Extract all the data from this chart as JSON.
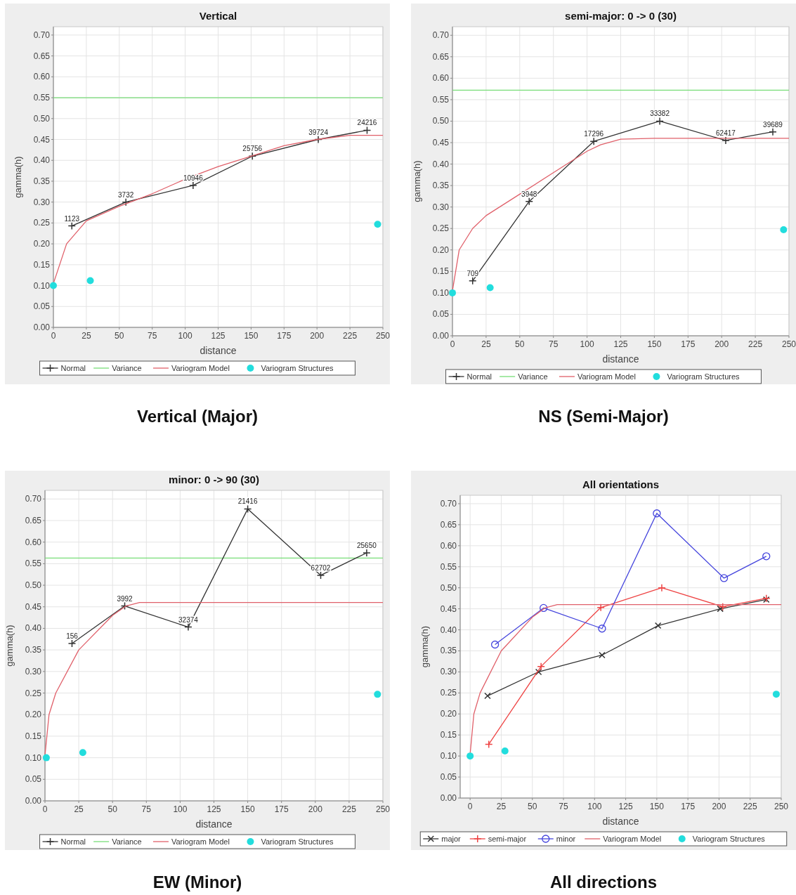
{
  "chart_data": [
    {
      "type": "line",
      "title": "Vertical",
      "xlabel": "distance",
      "ylabel": "gamma(h)",
      "xlim": [
        0,
        250
      ],
      "ylim": [
        0,
        0.72
      ],
      "xticks": [
        0,
        25,
        50,
        75,
        100,
        125,
        150,
        175,
        200,
        225,
        250
      ],
      "yticks": [
        {
          "value": 0,
          "label": "0.00"
        },
        0.05,
        {
          "value": 0.1,
          "label": "0.10"
        },
        0.15,
        {
          "value": 0.2,
          "label": "0.20"
        },
        0.25,
        {
          "value": 0.3,
          "label": "0.30"
        },
        0.35,
        {
          "value": 0.4,
          "label": "0.40"
        },
        0.45,
        {
          "value": 0.5,
          "label": "0.50"
        },
        0.55,
        {
          "value": 0.6,
          "label": "0.60"
        },
        0.65,
        {
          "value": 0.7,
          "label": "0.70"
        }
      ],
      "grid": true,
      "legend": "bottom",
      "series": [
        {
          "name": "Normal",
          "type": "line",
          "marker": "plus",
          "color": "#333333",
          "x": [
            14,
            55,
            106,
            151,
            201,
            238
          ],
          "values": [
            0.243,
            0.3,
            0.34,
            0.41,
            0.45,
            0.472
          ]
        },
        {
          "name": "Variogram Model",
          "type": "line",
          "marker": "none",
          "color": "#e0606a",
          "x": [
            0,
            10,
            25,
            50,
            75,
            100,
            125,
            150,
            175,
            200,
            225,
            250
          ],
          "values": [
            0.105,
            0.2,
            0.255,
            0.29,
            0.32,
            0.355,
            0.385,
            0.41,
            0.435,
            0.45,
            0.46,
            0.46
          ]
        },
        {
          "name": "Variogram Structures",
          "type": "scatter",
          "marker": "circle",
          "color": "#22dddd",
          "x": [
            0,
            28,
            246
          ],
          "values": [
            0.1,
            0.112,
            0.247
          ]
        }
      ],
      "ref_lines": [
        {
          "axis": "y",
          "value": 0.55,
          "label": "Variance",
          "color": "#77dd77"
        }
      ],
      "annotations": [
        {
          "text": "1123",
          "x": 14,
          "y": 0.243
        },
        {
          "text": "3732",
          "x": 55,
          "y": 0.3
        },
        {
          "text": "10946",
          "x": 106,
          "y": 0.34
        },
        {
          "text": "25756",
          "x": 151,
          "y": 0.41
        },
        {
          "text": "39724",
          "x": 201,
          "y": 0.45
        },
        {
          "text": "24216",
          "x": 238,
          "y": 0.472
        },
        "Vertical (Major)"
      ]
    },
    {
      "type": "line",
      "title": "semi-major: 0 -> 0 (30)",
      "xlabel": "distance",
      "ylabel": "gamma(h)",
      "xlim": [
        0,
        250
      ],
      "ylim": [
        0,
        0.72
      ],
      "xticks": [
        0,
        25,
        50,
        75,
        100,
        125,
        150,
        175,
        200,
        225,
        250
      ],
      "yticks": [
        {
          "value": 0,
          "label": "0.00"
        },
        0.05,
        {
          "value": 0.1,
          "label": "0.10"
        },
        0.15,
        {
          "value": 0.2,
          "label": "0.20"
        },
        0.25,
        {
          "value": 0.3,
          "label": "0.30"
        },
        0.35,
        {
          "value": 0.4,
          "label": "0.40"
        },
        0.45,
        {
          "value": 0.5,
          "label": "0.50"
        },
        0.55,
        {
          "value": 0.6,
          "label": "0.60"
        },
        0.65,
        {
          "value": 0.7,
          "label": "0.70"
        }
      ],
      "grid": true,
      "legend": "bottom",
      "series": [
        {
          "name": "Normal",
          "type": "line",
          "marker": "plus",
          "color": "#333333",
          "x": [
            15,
            57,
            105,
            154,
            203,
            238
          ],
          "values": [
            0.128,
            0.313,
            0.453,
            0.5,
            0.455,
            0.475
          ]
        },
        {
          "name": "Variogram Model",
          "type": "line",
          "marker": "none",
          "color": "#e0606a",
          "x": [
            0,
            5,
            15,
            25,
            50,
            75,
            100,
            110,
            125,
            150,
            250
          ],
          "values": [
            0.105,
            0.2,
            0.25,
            0.28,
            0.33,
            0.38,
            0.43,
            0.445,
            0.458,
            0.46,
            0.46
          ]
        },
        {
          "name": "Variogram Structures",
          "type": "scatter",
          "marker": "circle",
          "color": "#22dddd",
          "x": [
            0,
            28,
            246
          ],
          "values": [
            0.1,
            0.112,
            0.247
          ]
        }
      ],
      "ref_lines": [
        {
          "axis": "y",
          "value": 0.572,
          "label": "Variance",
          "color": "#77dd77"
        }
      ],
      "annotations": [
        {
          "text": "709",
          "x": 15,
          "y": 0.128
        },
        {
          "text": "3948",
          "x": 57,
          "y": 0.313
        },
        {
          "text": "17296",
          "x": 105,
          "y": 0.453
        },
        {
          "text": "33382",
          "x": 154,
          "y": 0.5
        },
        {
          "text": "62417",
          "x": 203,
          "y": 0.455
        },
        {
          "text": "39689",
          "x": 238,
          "y": 0.475
        },
        "NS (Semi-Major)"
      ]
    },
    {
      "type": "line",
      "title": "minor: 0 -> 90 (30)",
      "xlabel": "distance",
      "ylabel": "gamma(h)",
      "xlim": [
        0,
        250
      ],
      "ylim": [
        0,
        0.72
      ],
      "xticks": [
        0,
        25,
        50,
        75,
        100,
        125,
        150,
        175,
        200,
        225,
        250
      ],
      "yticks": [
        {
          "value": 0,
          "label": "0.00"
        },
        0.05,
        {
          "value": 0.1,
          "label": "0.10"
        },
        0.15,
        {
          "value": 0.2,
          "label": "0.20"
        },
        0.25,
        {
          "value": 0.3,
          "label": "0.30"
        },
        0.35,
        {
          "value": 0.4,
          "label": "0.40"
        },
        0.45,
        {
          "value": 0.5,
          "label": "0.50"
        },
        0.55,
        {
          "value": 0.6,
          "label": "0.60"
        },
        0.65,
        {
          "value": 0.7,
          "label": "0.70"
        }
      ],
      "grid": true,
      "legend": "bottom",
      "series": [
        {
          "name": "Normal",
          "type": "line",
          "marker": "plus",
          "color": "#333333",
          "x": [
            20,
            59,
            106,
            150,
            204,
            238
          ],
          "values": [
            0.365,
            0.452,
            0.403,
            0.677,
            0.523,
            0.575
          ]
        },
        {
          "name": "Variogram Model",
          "type": "line",
          "marker": "none",
          "color": "#e0606a",
          "x": [
            0,
            3,
            8,
            25,
            50,
            60,
            70,
            250
          ],
          "values": [
            0.105,
            0.2,
            0.25,
            0.35,
            0.43,
            0.452,
            0.46,
            0.46
          ]
        },
        {
          "name": "Variogram Structures",
          "type": "scatter",
          "marker": "circle",
          "color": "#22dddd",
          "x": [
            1,
            28,
            246
          ],
          "values": [
            0.1,
            0.112,
            0.247
          ]
        }
      ],
      "ref_lines": [
        {
          "axis": "y",
          "value": 0.563,
          "label": "Variance",
          "color": "#77dd77"
        }
      ],
      "annotations": [
        {
          "text": "156",
          "x": 20,
          "y": 0.365
        },
        {
          "text": "3992",
          "x": 59,
          "y": 0.452
        },
        {
          "text": "32374",
          "x": 106,
          "y": 0.403
        },
        {
          "text": "21416",
          "x": 150,
          "y": 0.677
        },
        {
          "text": "62702",
          "x": 204,
          "y": 0.523
        },
        {
          "text": "25650",
          "x": 238,
          "y": 0.575
        },
        "EW (Minor)"
      ]
    },
    {
      "type": "line",
      "title": "All orientations",
      "xlabel": "distance",
      "ylabel": "gamma(h)",
      "xlim": [
        -8,
        250
      ],
      "ylim": [
        0,
        0.72
      ],
      "xticks": [
        0,
        25,
        50,
        75,
        100,
        125,
        150,
        175,
        200,
        225,
        250
      ],
      "yticks": [
        {
          "value": 0,
          "label": "0.00"
        },
        0.05,
        {
          "value": 0.1,
          "label": "0.10"
        },
        0.15,
        {
          "value": 0.2,
          "label": "0.20"
        },
        0.25,
        {
          "value": 0.3,
          "label": "0.30"
        },
        0.35,
        {
          "value": 0.4,
          "label": "0.40"
        },
        0.45,
        {
          "value": 0.5,
          "label": "0.50"
        },
        0.55,
        {
          "value": 0.6,
          "label": "0.60"
        },
        0.65,
        {
          "value": 0.7,
          "label": "0.70"
        }
      ],
      "grid": true,
      "legend": "bottom",
      "series": [
        {
          "name": "major",
          "type": "line",
          "marker": "cross",
          "color": "#333333",
          "x": [
            14,
            55,
            106,
            151,
            201,
            238
          ],
          "values": [
            0.243,
            0.3,
            0.34,
            0.41,
            0.45,
            0.472
          ]
        },
        {
          "name": "semi-major",
          "type": "line",
          "marker": "plus",
          "color": "#ee4444",
          "x": [
            15,
            57,
            105,
            154,
            203,
            238
          ],
          "values": [
            0.128,
            0.313,
            0.453,
            0.5,
            0.455,
            0.475
          ]
        },
        {
          "name": "minor",
          "type": "line",
          "marker": "circle",
          "color": "#4444dd",
          "x": [
            20,
            59,
            106,
            150,
            204,
            238
          ],
          "values": [
            0.365,
            0.452,
            0.403,
            0.677,
            0.523,
            0.575
          ]
        },
        {
          "name": "Variogram Model",
          "type": "line",
          "marker": "none",
          "color": "#e0606a",
          "x": [
            0,
            3,
            8,
            25,
            50,
            60,
            70,
            250
          ],
          "values": [
            0.105,
            0.2,
            0.25,
            0.35,
            0.43,
            0.452,
            0.46,
            0.46
          ]
        },
        {
          "name": "Variogram Structures",
          "type": "scatter",
          "marker": "circle",
          "color": "#22dddd",
          "x": [
            0,
            28,
            246
          ],
          "values": [
            0.1,
            0.112,
            0.247
          ]
        }
      ],
      "annotations": [
        "All directions"
      ]
    }
  ]
}
